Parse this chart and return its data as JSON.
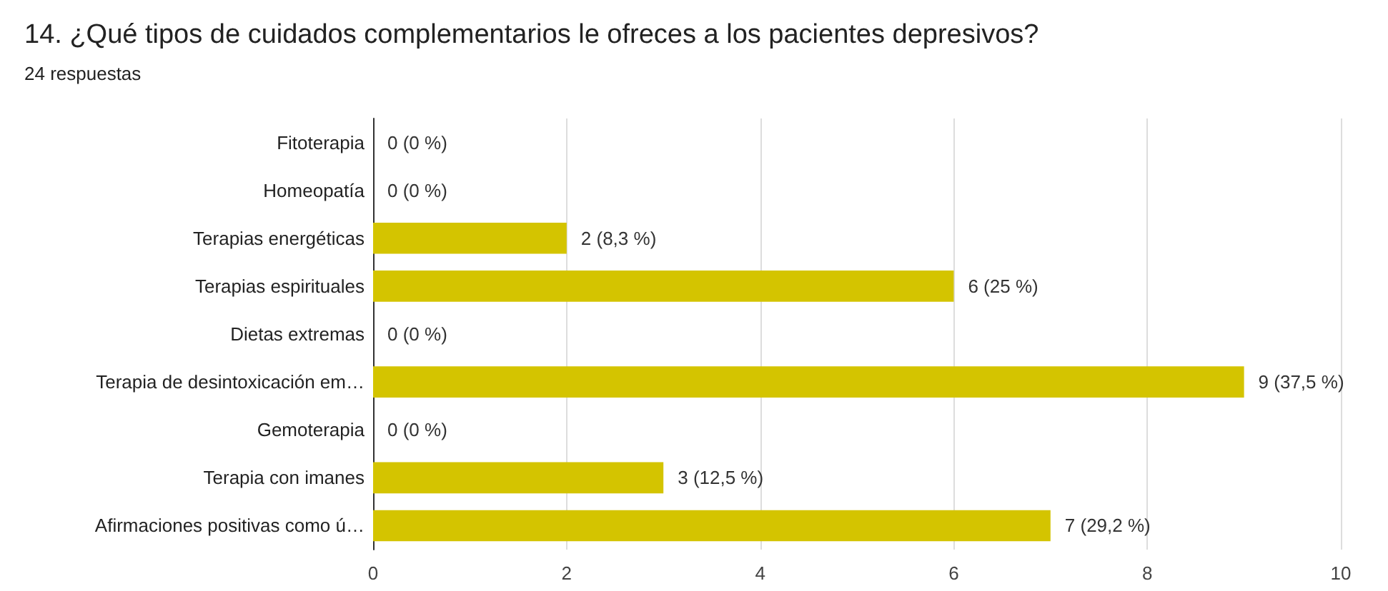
{
  "chart_data": {
    "type": "bar",
    "orientation": "horizontal",
    "title": "14. ¿Qué tipos de cuidados complementarios le ofreces a los pacientes depresivos?",
    "subtitle": "24 respuestas",
    "categories": [
      "Fitoterapia",
      "Homeopatía",
      "Terapias energéticas",
      "Terapias espirituales",
      "Dietas extremas",
      "Terapia de desintoxicación em…",
      "Gemoterapia",
      "Terapia con imanes",
      "Afirmaciones positivas como ú…"
    ],
    "values": [
      0,
      0,
      2,
      6,
      0,
      9,
      0,
      3,
      7
    ],
    "value_labels": [
      "0 (0 %)",
      "0 (0 %)",
      "2 (8,3 %)",
      "6 (25 %)",
      "0 (0 %)",
      "9 (37,5 %)",
      "0 (0 %)",
      "3 (12,5 %)",
      "7 (29,2 %)"
    ],
    "color": "#d4c400",
    "xlim": [
      0,
      10
    ],
    "xticks": [
      0,
      2,
      4,
      6,
      8,
      10
    ],
    "grid": "x"
  }
}
